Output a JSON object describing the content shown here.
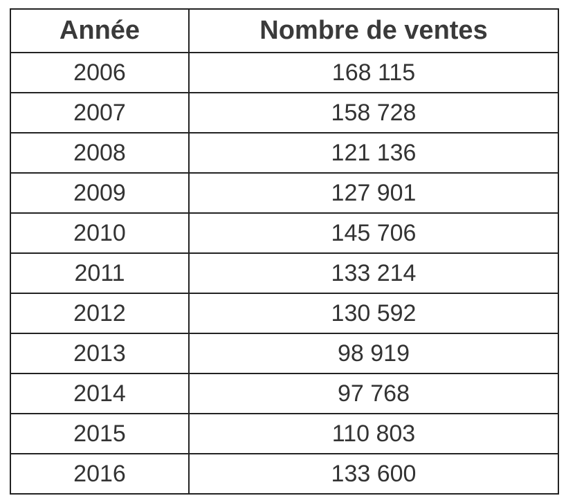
{
  "table": {
    "header": [
      "Année",
      "Nombre de ventes"
    ],
    "rows": [
      [
        "2006",
        "168 115"
      ],
      [
        "2007",
        "158 728"
      ],
      [
        "2008",
        "121 136"
      ],
      [
        "2009",
        "127 901"
      ],
      [
        "2010",
        "145 706"
      ],
      [
        "2011",
        "133 214"
      ],
      [
        "2012",
        "130 592"
      ],
      [
        "2013",
        "98 919"
      ],
      [
        "2014",
        "97 768"
      ],
      [
        "2015",
        "110 803"
      ],
      [
        "2016",
        "133 600"
      ]
    ]
  }
}
